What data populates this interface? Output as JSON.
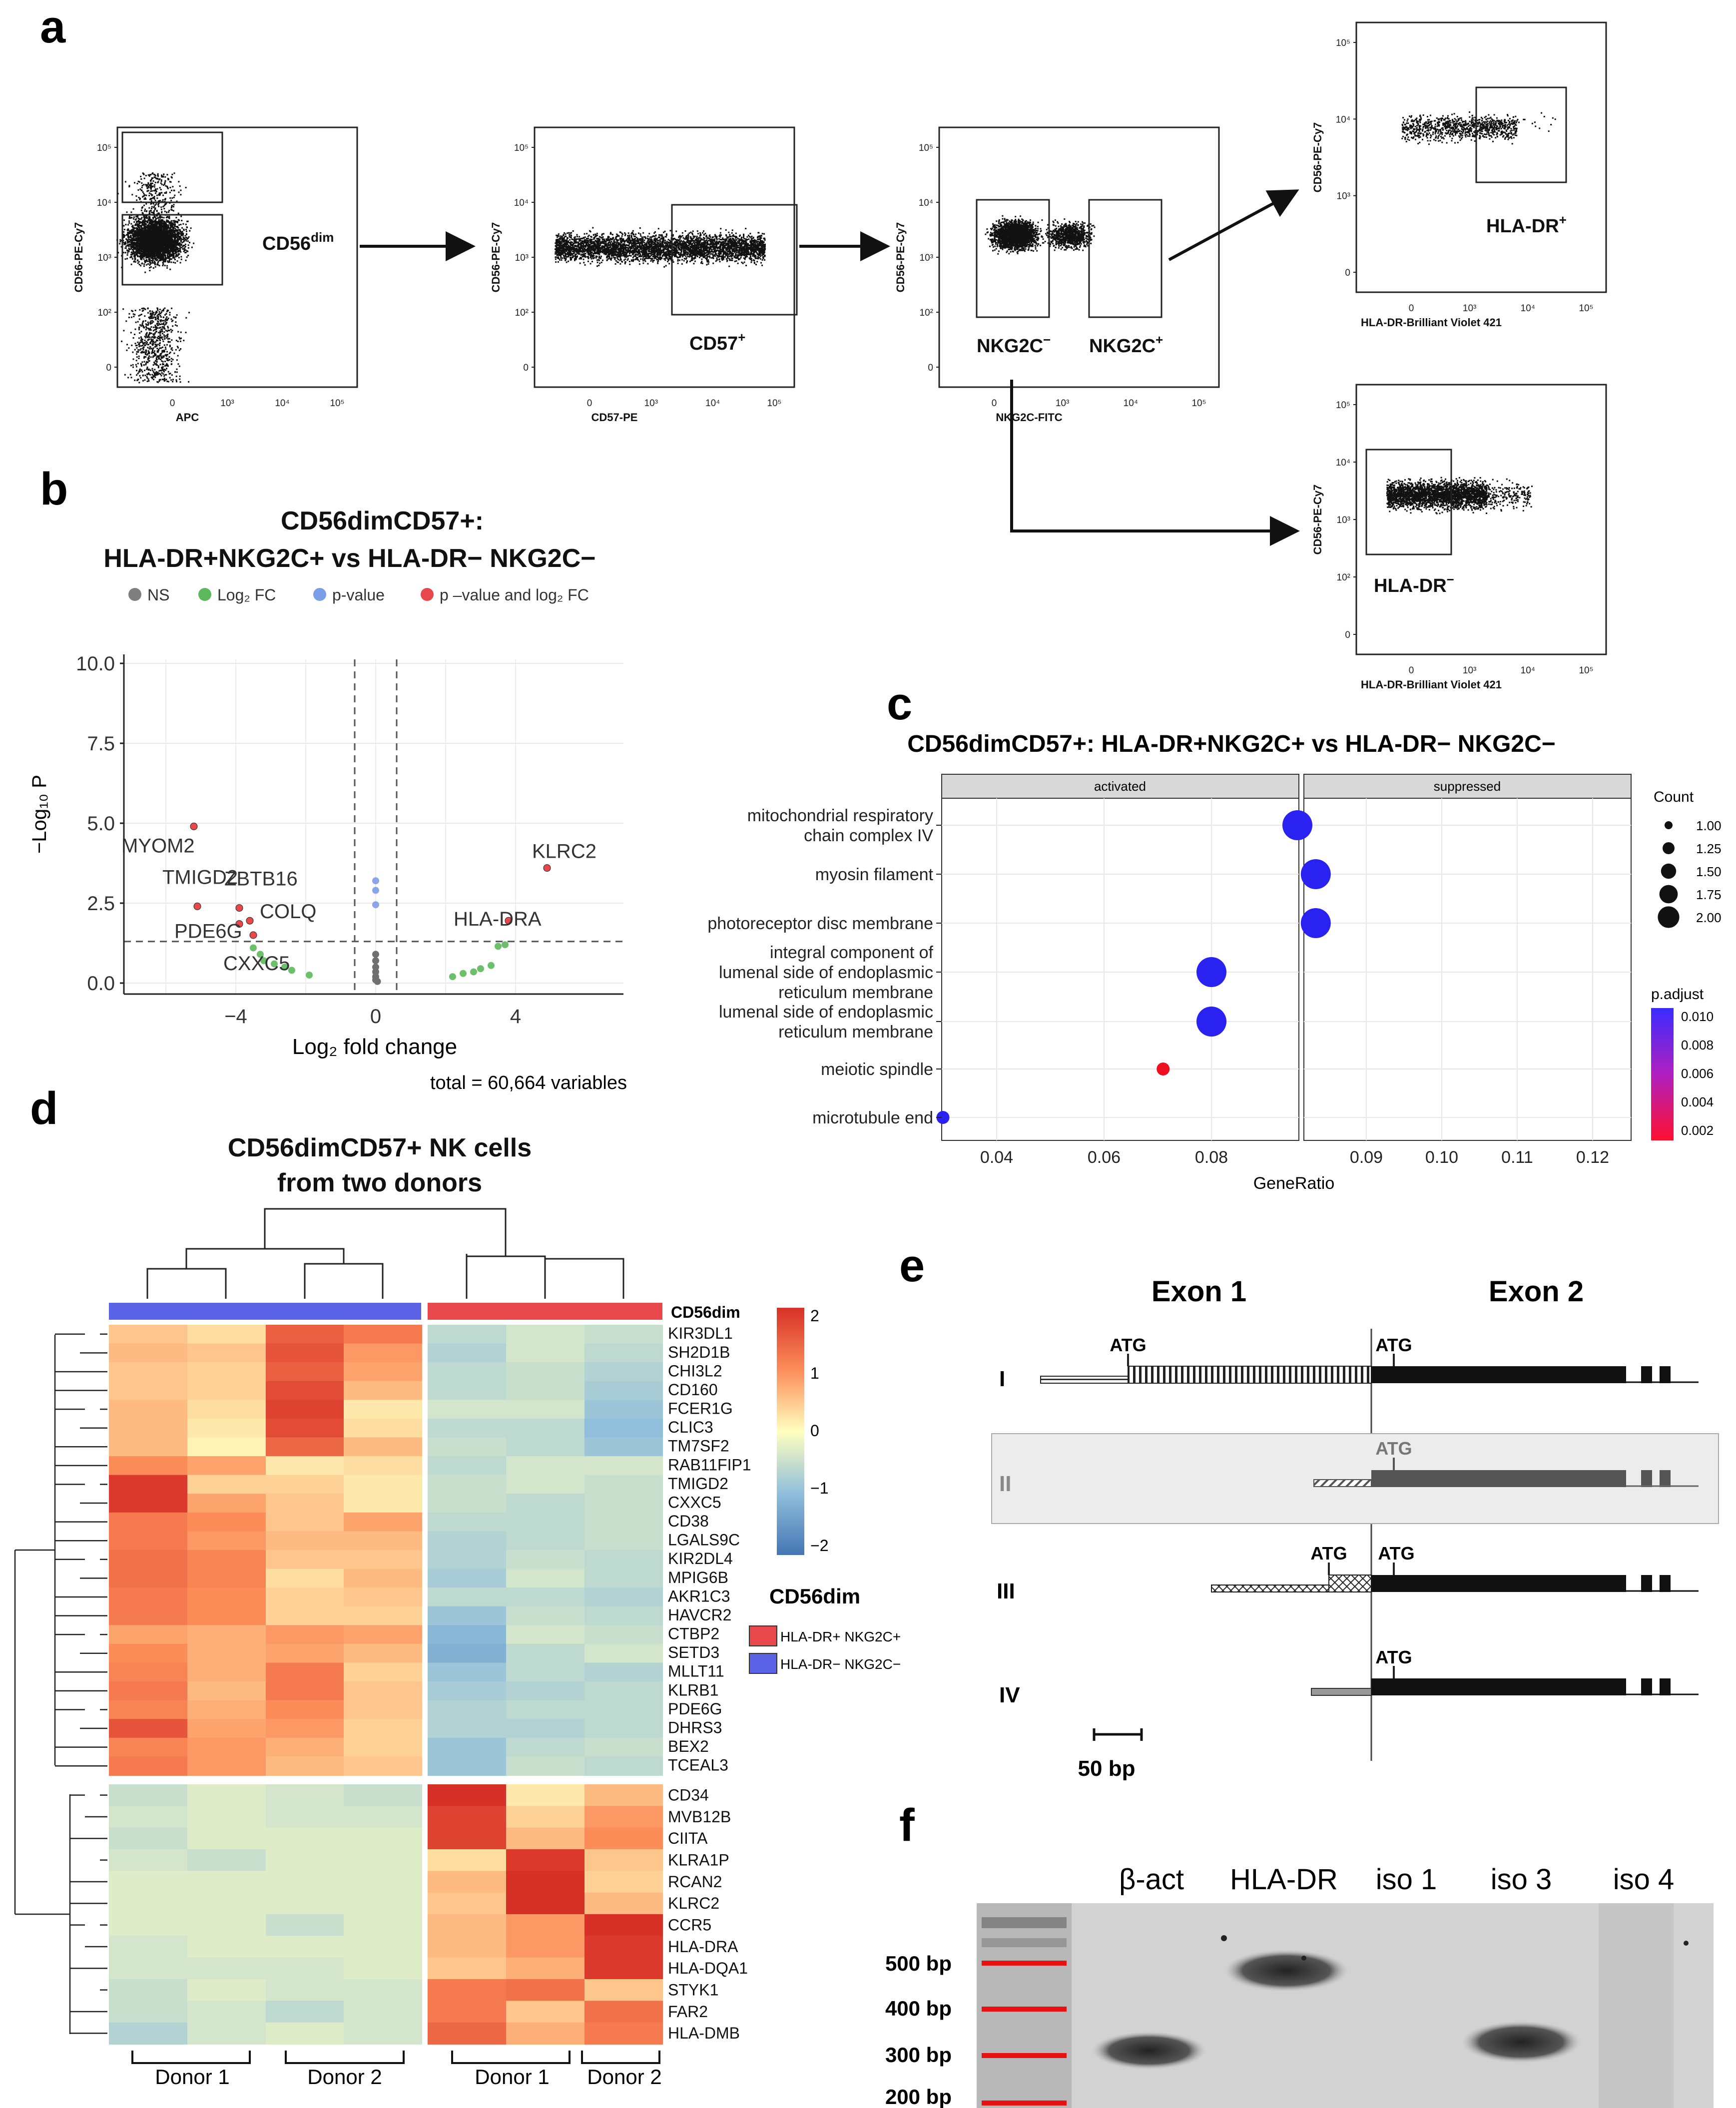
{
  "panels": {
    "a": "a",
    "b": "b",
    "c": "c",
    "d": "d",
    "e": "e",
    "f": "f"
  },
  "flow": {
    "plots": [
      {
        "id": "p1",
        "ylabel": "CD56-PE-Cy7",
        "xlabel": "APC",
        "xticks": [
          "0",
          "10³",
          "10⁴",
          "10⁵"
        ],
        "yticks": [
          "10⁵",
          "10⁴",
          "10³",
          "10²",
          "0"
        ],
        "gate": "CD56dim"
      },
      {
        "id": "p2",
        "ylabel": "CD56-PE-Cy7",
        "xlabel": "CD57-PE",
        "xticks": [
          "0",
          "10³",
          "10⁴",
          "10⁵"
        ],
        "yticks": [
          "10⁵",
          "10⁴",
          "10³",
          "10²",
          "0"
        ],
        "gate": "CD57+"
      },
      {
        "id": "p3",
        "ylabel": "CD56-PE-Cy7",
        "xlabel": "NKG2C-FITC",
        "xticks": [
          "0",
          "10³",
          "10⁴",
          "10⁵"
        ],
        "yticks": [
          "10⁵",
          "10⁴",
          "10³",
          "10²",
          "0"
        ],
        "gate_left": "NKG2C−",
        "gate_right": "NKG2C+"
      },
      {
        "id": "p4",
        "ylabel": "CD56-PE-Cy7",
        "xlabel": "HLA-DR-Brilliant Violet 421",
        "xticks": [
          "0",
          "10³",
          "10⁴",
          "10⁵"
        ],
        "yticks": [
          "10⁵",
          "10⁴",
          "10³",
          "0"
        ],
        "gate": "HLA-DR+"
      },
      {
        "id": "p5",
        "ylabel": "CD56-PE-Cy7",
        "xlabel": "HLA-DR-Brilliant Violet 421",
        "xticks": [
          "0",
          "10³",
          "10⁴",
          "10⁵"
        ],
        "yticks": [
          "10⁵",
          "10⁴",
          "10³",
          "10²",
          "0"
        ],
        "gate": "HLA-DR−"
      }
    ]
  },
  "volcano": {
    "title_line1": "CD56dimCD57+:",
    "title_line2": "HLA-DR+NKG2C+ vs HLA-DR− NKG2C−",
    "legend": [
      {
        "label": "NS",
        "color": "#7f7f7f"
      },
      {
        "label": "Log₂ FC",
        "color": "#5cb85c"
      },
      {
        "label": "p-value",
        "color": "#7b9ee8"
      },
      {
        "label": "p –value and log₂ FC",
        "color": "#e8484c"
      }
    ],
    "ylabel": "−Log₁₀ P",
    "xlabel": "Log₂ fold change",
    "caption": "total = 60,664 variables",
    "xticks": [
      "−4",
      "0",
      "4"
    ],
    "yticks": [
      "0.0",
      "2.5",
      "5.0",
      "7.5",
      "10.0"
    ],
    "labels": [
      "MYOM2",
      "KLRC2",
      "TMIGD2",
      "ZBTB16",
      "COLQ",
      "PDE6G",
      "HLA-DRA",
      "CXXC5"
    ]
  },
  "go": {
    "title": "CD56dimCD57+: HLA-DR+NKG2C+ vs HLA-DR− NKG2C−",
    "facet_left": "activated",
    "facet_right": "suppressed",
    "xlabel": "GeneRatio",
    "xticks_left": [
      "0.04",
      "0.06",
      "0.08"
    ],
    "xticks_right": [
      "0.09",
      "0.10",
      "0.11",
      "0.12"
    ],
    "terms": [
      "mitochondrial respiratory",
      "chain complex IV",
      "myosin filament",
      "photoreceptor disc membrane",
      "integral component of",
      "lumenal side of endoplasmic",
      "reticulum membrane",
      "lumenal side of endoplasmic",
      "reticulum membrane",
      "meiotic spindle",
      "microtubule end"
    ],
    "count_title": "Count",
    "count_values": [
      "1.00",
      "1.25",
      "1.50",
      "1.75",
      "2.00"
    ],
    "padj_title": "p.adjust",
    "padj_values": [
      "0.010",
      "0.008",
      "0.006",
      "0.004",
      "0.002"
    ]
  },
  "heatmap": {
    "title_line1": "CD56dimCD57+ NK cells",
    "title_line2": "from two donors",
    "col_annotation_label": "CD56dim",
    "genes_top": [
      "KIR3DL1",
      "SH2D1B",
      "CHI3L2",
      "CD160",
      "FCER1G",
      "CLIC3",
      "TM7SF2",
      "RAB11FIP1",
      "TMIGD2",
      "CXXC5",
      "CD38",
      "LGALS9C",
      "KIR2DL4",
      "MPIG6B",
      "AKR1C3",
      "HAVCR2",
      "CTBP2",
      "SETD3",
      "MLLT11",
      "KLRB1",
      "PDE6G",
      "DHRS3",
      "BEX2",
      "TCEAL3"
    ],
    "genes_bottom": [
      "CD34",
      "MVB12B",
      "CIITA",
      "KLRA1P",
      "RCAN2",
      "KLRC2",
      "CCR5",
      "HLA-DRA",
      "HLA-DQA1",
      "STYK1",
      "FAR2",
      "HLA-DMB"
    ],
    "scale": [
      "2",
      "1",
      "0",
      "−1",
      "−2"
    ],
    "legend_title": "CD56dim",
    "legend_items": [
      {
        "label": "HLA-DR+ NKG2C+",
        "color": "#e8484c"
      },
      {
        "label": "HLA-DR− NKG2C−",
        "color": "#5b63e6"
      }
    ],
    "donors": [
      "Donor 1",
      "Donor 2",
      "Donor 1",
      "Donor 2"
    ]
  },
  "isoforms": {
    "exon1": "Exon 1",
    "exon2": "Exon 2",
    "rows": [
      "I",
      "II",
      "III",
      "IV"
    ],
    "atg": "ATG",
    "scale": "50 bp"
  },
  "gel": {
    "lanes": [
      "β-act",
      "HLA-DR",
      "iso 1",
      "iso 3",
      "iso 4"
    ],
    "markers": [
      "500 bp",
      "400 bp",
      "300 bp",
      "200 bp"
    ]
  }
}
